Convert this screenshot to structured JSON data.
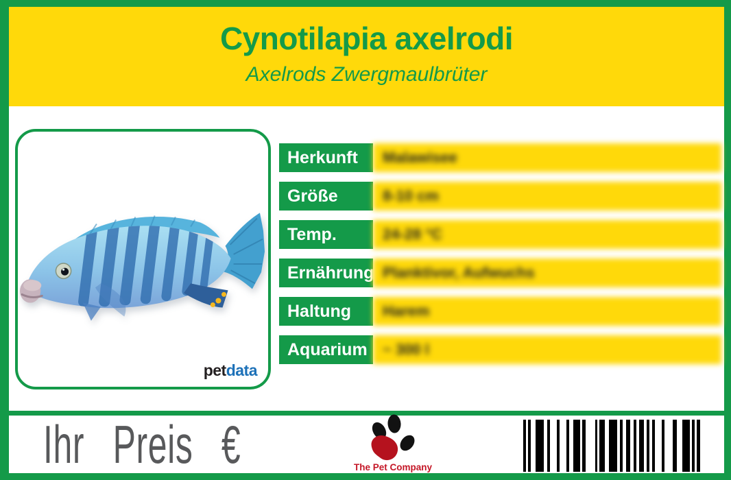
{
  "header": {
    "title": "Cynotilapia axelrodi",
    "subtitle": "Axelrods Zwergmaulbrüter"
  },
  "photo": {
    "petdata_pet": "pet",
    "petdata_data": "data"
  },
  "table": {
    "rows": [
      {
        "label": "Herkunft",
        "value": "Malawisee"
      },
      {
        "label": "Größe",
        "value": "8-10 cm"
      },
      {
        "label": "Temp.",
        "value": "24-28 °C"
      },
      {
        "label": "Ernährung",
        "value": "Planktivor, Aufwuchs"
      },
      {
        "label": "Haltung",
        "value": "Harem"
      },
      {
        "label": "Aquarium",
        "value": "~ 300 l"
      }
    ]
  },
  "footer": {
    "price_label": "Ihr Preis €",
    "company_name": "The Pet Company"
  },
  "colors": {
    "green": "#149a49",
    "yellow": "#ffd90a",
    "gray": "#58595b",
    "red": "#c41626",
    "blue": "#1d71b8",
    "ink": "#231f20"
  },
  "barcode": {
    "bars": [
      [
        4,
        3
      ],
      [
        4,
        7
      ],
      [
        12,
        5
      ],
      [
        4,
        10
      ],
      [
        4,
        10
      ],
      [
        4,
        6
      ],
      [
        10,
        3
      ],
      [
        5,
        14
      ],
      [
        3,
        3
      ],
      [
        8,
        6
      ],
      [
        12,
        4
      ],
      [
        4,
        5
      ],
      [
        6,
        5
      ],
      [
        4,
        4
      ],
      [
        7,
        4
      ],
      [
        4,
        4
      ],
      [
        4,
        10
      ],
      [
        4,
        12
      ],
      [
        6,
        8
      ],
      [
        11,
        3
      ],
      [
        4,
        3
      ],
      [
        5,
        0
      ]
    ]
  }
}
